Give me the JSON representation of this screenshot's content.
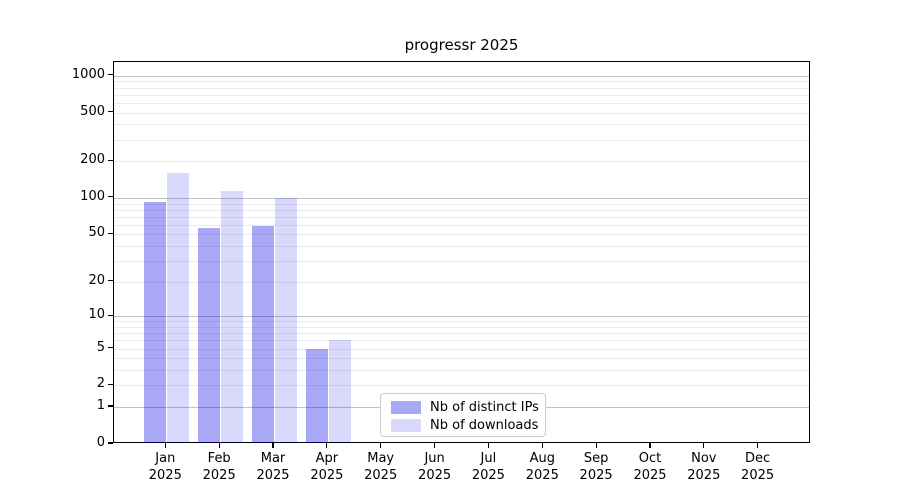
{
  "title": "progressr 2025",
  "chart_data": {
    "type": "bar",
    "title": "progressr 2025",
    "categories": [
      "Jan",
      "Feb",
      "Mar",
      "Apr",
      "May",
      "Jun",
      "Jul",
      "Aug",
      "Sep",
      "Oct",
      "Nov",
      "Dec"
    ],
    "x_year_label": "2025",
    "series": [
      {
        "name": "Nb of distinct IPs",
        "color": "rgba(0,0,230,0.34)",
        "values": [
          92,
          57,
          59,
          5,
          0,
          0,
          0,
          0,
          0,
          0,
          0,
          0
        ]
      },
      {
        "name": "Nb of downloads",
        "color": "rgba(0,0,230,0.15)",
        "values": [
          160,
          114,
          100,
          6,
          0,
          0,
          0,
          0,
          0,
          0,
          0,
          0
        ]
      }
    ],
    "scale": "log10(value+1)",
    "ylim": [
      0,
      1292
    ],
    "y_ticks": [
      0,
      1,
      2,
      5,
      10,
      20,
      50,
      100,
      200,
      500,
      1000
    ],
    "y_major_gridlines": [
      1,
      10,
      100,
      1000
    ],
    "y_minor_gridlines": [
      2,
      3,
      4,
      5,
      6,
      7,
      8,
      9,
      20,
      30,
      40,
      50,
      60,
      70,
      80,
      90,
      200,
      300,
      400,
      500,
      600,
      700,
      800,
      900
    ],
    "grid": "horizontal",
    "legend_position": "inside-bottom-center",
    "colors": {
      "axis": "#000000",
      "minor_grid": "#ebebeb",
      "major_grid": "#c3c3c3",
      "background": "#ffffff"
    }
  }
}
